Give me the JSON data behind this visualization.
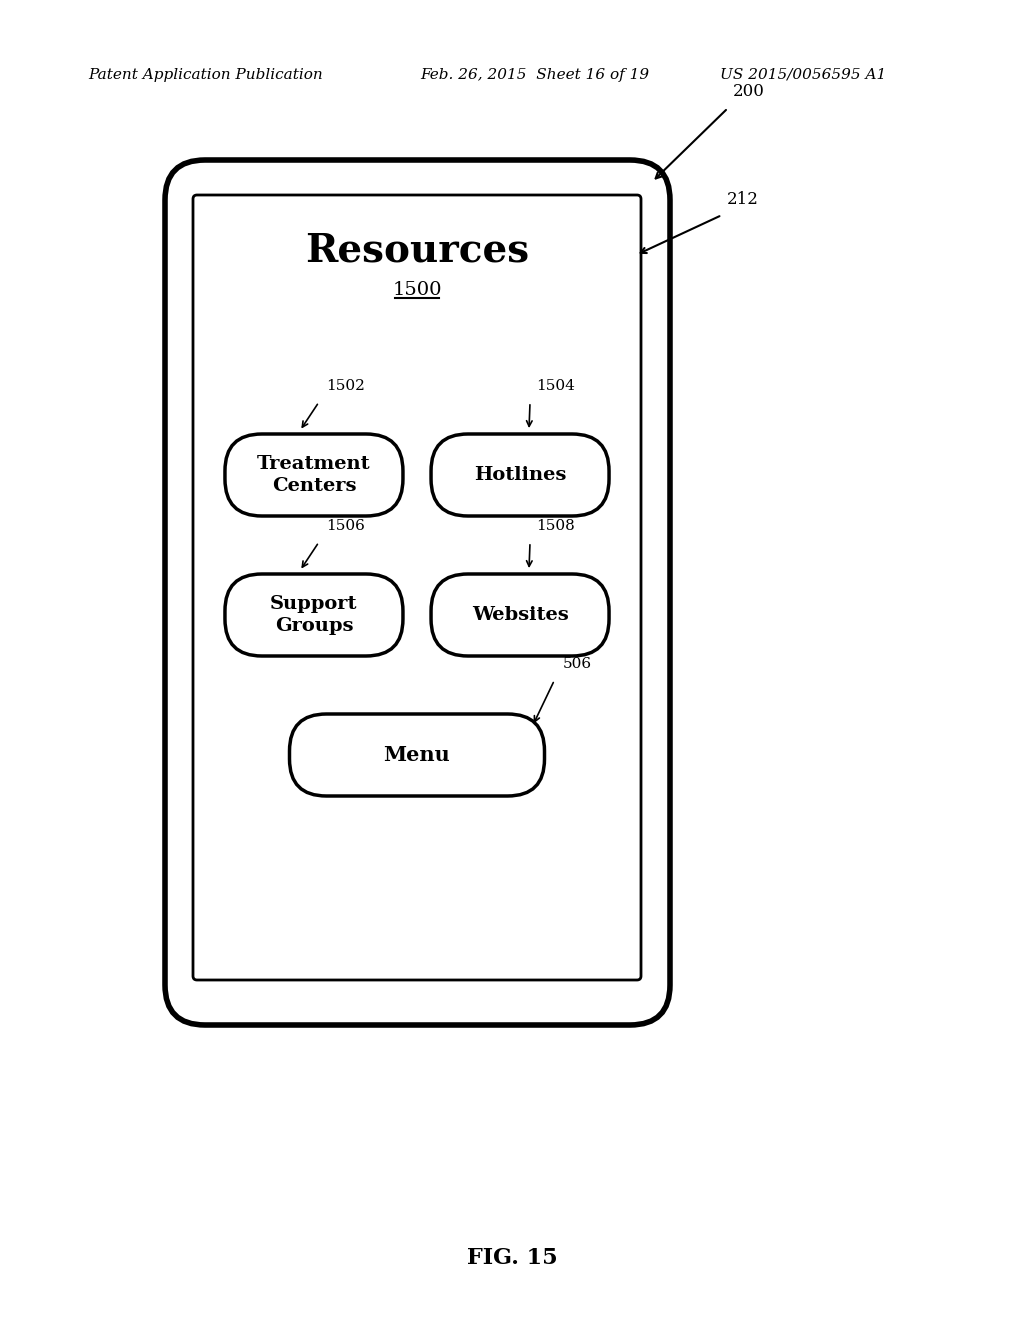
{
  "bg_color": "#ffffff",
  "header_left": "Patent Application Publication",
  "header_center": "Feb. 26, 2015  Sheet 16 of 19",
  "header_right": "US 2015/0056595 A1",
  "fig_label": "FIG. 15",
  "label_200": "200",
  "label_212": "212",
  "label_506": "506",
  "label_1502": "1502",
  "label_1504": "1504",
  "label_1506": "1506",
  "label_1508": "1508",
  "screen_title": "Resources",
  "screen_subtitle": "1500",
  "btn1_text": "Treatment\nCenters",
  "btn2_text": "Hotlines",
  "btn3_text": "Support\nGroups",
  "btn4_text": "Websites",
  "btn5_text": "Menu"
}
